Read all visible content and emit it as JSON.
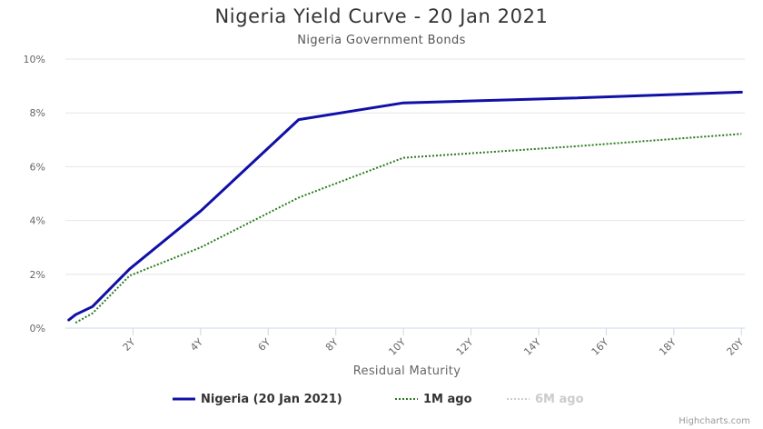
{
  "chart_data": {
    "type": "line",
    "title": "Nigeria Yield Curve - 20 Jan 2021",
    "subtitle": "Nigeria Government Bonds",
    "xlabel": "Residual Maturity",
    "ylabel": "",
    "xlim": [
      0,
      20.1
    ],
    "ylim": [
      0,
      10
    ],
    "x_ticks": [
      {
        "value": 2,
        "label": "2Y"
      },
      {
        "value": 4,
        "label": "4Y"
      },
      {
        "value": 6,
        "label": "6Y"
      },
      {
        "value": 8,
        "label": "8Y"
      },
      {
        "value": 10,
        "label": "10Y"
      },
      {
        "value": 12,
        "label": "12Y"
      },
      {
        "value": 14,
        "label": "14Y"
      },
      {
        "value": 16,
        "label": "16Y"
      },
      {
        "value": 18,
        "label": "18Y"
      },
      {
        "value": 20,
        "label": "20Y"
      }
    ],
    "y_ticks": [
      {
        "value": 0,
        "label": "0%"
      },
      {
        "value": 2,
        "label": "2%"
      },
      {
        "value": 4,
        "label": "4%"
      },
      {
        "value": 6,
        "label": "6%"
      },
      {
        "value": 8,
        "label": "8%"
      },
      {
        "value": 10,
        "label": "10%"
      }
    ],
    "grid": "horizontal",
    "legend_position": "bottom-center",
    "series": [
      {
        "name": "Nigeria (20 Jan 2021)",
        "color": "#1010a8",
        "style": "solid",
        "visible": true,
        "points": [
          [
            0.1,
            0.3
          ],
          [
            0.3,
            0.5
          ],
          [
            0.8,
            0.8
          ],
          [
            1.9,
            2.2
          ],
          [
            4.0,
            4.35
          ],
          [
            6.9,
            7.75
          ],
          [
            10.0,
            8.37
          ],
          [
            15.0,
            8.55
          ],
          [
            20.0,
            8.77
          ]
        ]
      },
      {
        "name": "1M ago",
        "color": "#2a7a1e",
        "style": "dotted",
        "visible": true,
        "points": [
          [
            0.3,
            0.2
          ],
          [
            0.8,
            0.55
          ],
          [
            1.0,
            0.8
          ],
          [
            1.9,
            1.95
          ],
          [
            4.0,
            3.0
          ],
          [
            6.9,
            4.85
          ],
          [
            10.0,
            6.33
          ],
          [
            15.0,
            6.75
          ],
          [
            20.0,
            7.22
          ]
        ]
      },
      {
        "name": "6M ago",
        "color": "#cccccc",
        "style": "dotted",
        "visible": false,
        "points": []
      }
    ]
  },
  "credits": "Highcharts.com"
}
